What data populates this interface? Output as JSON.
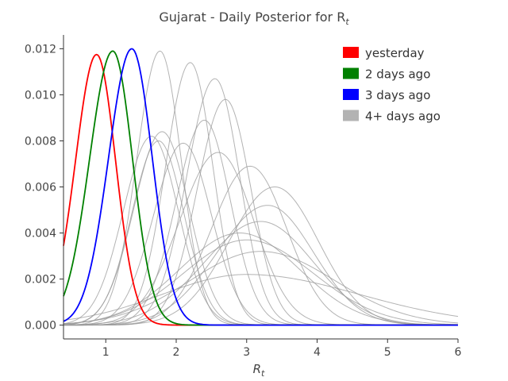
{
  "chart_data": {
    "type": "line",
    "title": "Gujarat - Daily Posterior for R",
    "title_subscript": "t",
    "xlabel": "R",
    "xlabel_subscript": "t",
    "ylabel": "",
    "xlim": [
      0.4,
      6.0
    ],
    "ylim": [
      -0.0006,
      0.0126
    ],
    "xticks": [
      1,
      2,
      3,
      4,
      5,
      6
    ],
    "xtick_labels": [
      "1",
      "2",
      "3",
      "4",
      "5",
      "6"
    ],
    "yticks": [
      0.0,
      0.002,
      0.004,
      0.006,
      0.008,
      0.01,
      0.012
    ],
    "ytick_labels": [
      "0.000",
      "0.002",
      "0.004",
      "0.006",
      "0.008",
      "0.010",
      "0.012"
    ],
    "grid": false,
    "legend_placement": "top-right",
    "legend": [
      {
        "label": "yesterday",
        "color": "#ff0000"
      },
      {
        "label": "2 days ago",
        "color": "#008000"
      },
      {
        "label": "3 days ago",
        "color": "#0000ff"
      },
      {
        "label": "4+ days ago",
        "color": "#b3b3b3"
      }
    ],
    "series": [
      {
        "color": "#ff0000",
        "peak_x": 0.87,
        "peak_y": 0.01175,
        "sigma_left": 0.3,
        "sigma_right": 0.27
      },
      {
        "color": "#008000",
        "peak_x": 1.1,
        "peak_y": 0.0119,
        "sigma_left": 0.33,
        "sigma_right": 0.28
      },
      {
        "color": "#0000ff",
        "peak_x": 1.37,
        "peak_y": 0.012,
        "sigma_left": 0.33,
        "sigma_right": 0.29
      },
      {
        "color": "#999999",
        "peak_x": 1.77,
        "peak_y": 0.0119,
        "sigma_left": 0.33,
        "sigma_right": 0.3
      },
      {
        "color": "#999999",
        "peak_x": 2.2,
        "peak_y": 0.0114,
        "sigma_left": 0.35,
        "sigma_right": 0.32
      },
      {
        "color": "#999999",
        "peak_x": 2.55,
        "peak_y": 0.0107,
        "sigma_left": 0.4,
        "sigma_right": 0.35
      },
      {
        "color": "#999999",
        "peak_x": 2.7,
        "peak_y": 0.0098,
        "sigma_left": 0.4,
        "sigma_right": 0.36
      },
      {
        "color": "#999999",
        "peak_x": 2.4,
        "peak_y": 0.0089,
        "sigma_left": 0.4,
        "sigma_right": 0.37
      },
      {
        "color": "#999999",
        "peak_x": 1.8,
        "peak_y": 0.0084,
        "sigma_left": 0.4,
        "sigma_right": 0.38
      },
      {
        "color": "#999999",
        "peak_x": 1.65,
        "peak_y": 0.0082,
        "sigma_left": 0.4,
        "sigma_right": 0.38
      },
      {
        "color": "#999999",
        "peak_x": 1.75,
        "peak_y": 0.008,
        "sigma_left": 0.38,
        "sigma_right": 0.36
      },
      {
        "color": "#999999",
        "peak_x": 2.1,
        "peak_y": 0.0079,
        "sigma_left": 0.42,
        "sigma_right": 0.4
      },
      {
        "color": "#999999",
        "peak_x": 2.6,
        "peak_y": 0.0075,
        "sigma_left": 0.55,
        "sigma_right": 0.5
      },
      {
        "color": "#999999",
        "peak_x": 3.05,
        "peak_y": 0.0069,
        "sigma_left": 0.55,
        "sigma_right": 0.52
      },
      {
        "color": "#999999",
        "peak_x": 3.4,
        "peak_y": 0.006,
        "sigma_left": 0.65,
        "sigma_right": 0.62
      },
      {
        "color": "#999999",
        "peak_x": 3.3,
        "peak_y": 0.0052,
        "sigma_left": 0.72,
        "sigma_right": 0.65
      },
      {
        "color": "#999999",
        "peak_x": 3.2,
        "peak_y": 0.0045,
        "sigma_left": 0.8,
        "sigma_right": 0.75
      },
      {
        "color": "#999999",
        "peak_x": 2.9,
        "peak_y": 0.004,
        "sigma_left": 0.85,
        "sigma_right": 0.85
      },
      {
        "color": "#999999",
        "peak_x": 3.0,
        "peak_y": 0.0037,
        "sigma_left": 0.9,
        "sigma_right": 0.95
      },
      {
        "color": "#999999",
        "peak_x": 3.2,
        "peak_y": 0.0032,
        "sigma_left": 1.0,
        "sigma_right": 1.05
      },
      {
        "color": "#999999",
        "peak_x": 3.0,
        "peak_y": 0.0022,
        "sigma_left": 1.2,
        "sigma_right": 1.6
      }
    ]
  }
}
